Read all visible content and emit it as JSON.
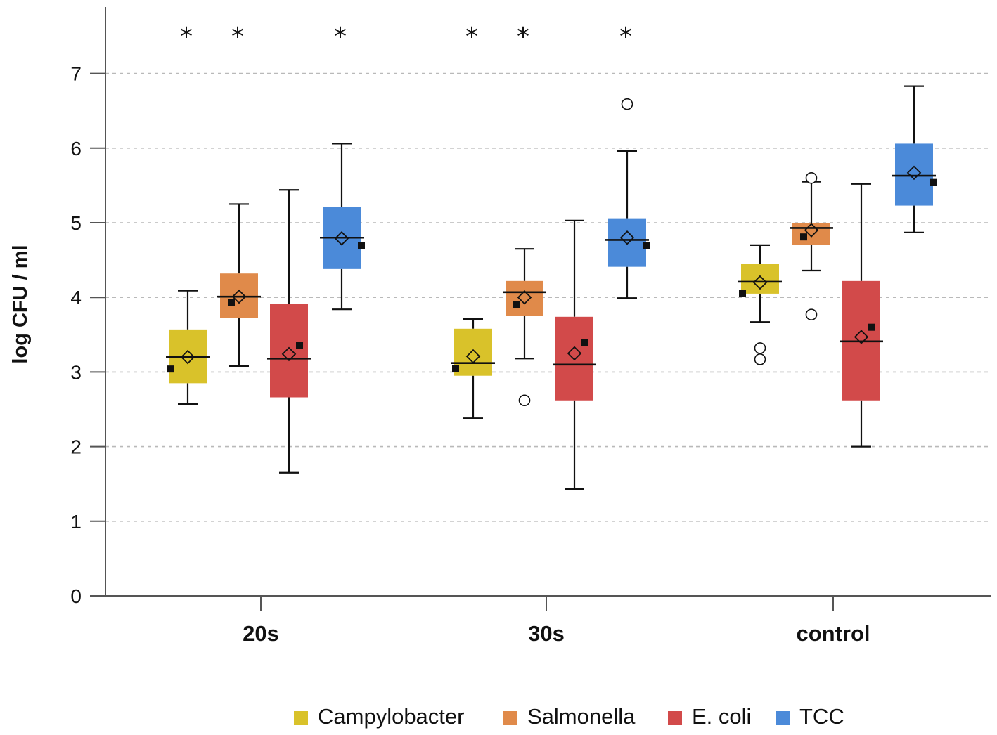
{
  "chart_data": {
    "type": "box",
    "title": "",
    "xlabel": "",
    "ylabel": "log CFU / ml",
    "ylim": [
      0,
      7.7
    ],
    "yticks": [
      "0",
      "1",
      "2",
      "3",
      "4",
      "5",
      "6",
      "7"
    ],
    "grid": true,
    "legend_position": "bottom",
    "categories": [
      "20s",
      "30s",
      "control"
    ],
    "significance_marker": "*",
    "series": [
      {
        "name": "Campylobacter",
        "color": "#d9c22a",
        "groups": [
          {
            "category": "20s",
            "whisker_low": 2.57,
            "q1": 2.85,
            "median": 3.2,
            "q3": 3.57,
            "whisker_high": 4.09,
            "mean": 3.2,
            "point": 3.04,
            "outliers": [],
            "significant": true
          },
          {
            "category": "30s",
            "whisker_low": 2.38,
            "q1": 2.95,
            "median": 3.12,
            "q3": 3.58,
            "whisker_high": 3.71,
            "mean": 3.21,
            "point": 3.05,
            "outliers": [],
            "significant": true
          },
          {
            "category": "control",
            "whisker_low": 3.67,
            "q1": 4.05,
            "median": 4.21,
            "q3": 4.45,
            "whisker_high": 4.7,
            "mean": 4.2,
            "point": 4.05,
            "outliers": [
              3.32,
              3.17
            ],
            "significant": false
          }
        ]
      },
      {
        "name": "Salmonella",
        "color": "#e08a4a",
        "groups": [
          {
            "category": "20s",
            "whisker_low": 3.08,
            "q1": 3.72,
            "median": 4.01,
            "q3": 4.32,
            "whisker_high": 5.25,
            "mean": 4.01,
            "point": 3.93,
            "outliers": [],
            "significant": true
          },
          {
            "category": "30s",
            "whisker_low": 3.18,
            "q1": 3.75,
            "median": 4.07,
            "q3": 4.22,
            "whisker_high": 4.65,
            "mean": 4.0,
            "point": 3.9,
            "outliers": [
              2.62
            ],
            "significant": true
          },
          {
            "category": "control",
            "whisker_low": 4.36,
            "q1": 4.7,
            "median": 4.93,
            "q3": 5.0,
            "whisker_high": 5.55,
            "mean": 4.9,
            "point": 4.81,
            "outliers": [
              5.6,
              3.77
            ],
            "significant": false
          }
        ]
      },
      {
        "name": "E. coli",
        "color": "#d24a4a",
        "groups": [
          {
            "category": "20s",
            "whisker_low": 1.65,
            "q1": 2.66,
            "median": 3.18,
            "q3": 3.91,
            "whisker_high": 5.44,
            "mean": 3.24,
            "point": 3.36,
            "outliers": [],
            "significant": false
          },
          {
            "category": "30s",
            "whisker_low": 1.43,
            "q1": 2.62,
            "median": 3.1,
            "q3": 3.74,
            "whisker_high": 5.03,
            "mean": 3.25,
            "point": 3.39,
            "outliers": [],
            "significant": false
          },
          {
            "category": "control",
            "whisker_low": 2.0,
            "q1": 2.62,
            "median": 3.41,
            "q3": 4.22,
            "whisker_high": 5.52,
            "mean": 3.47,
            "point": 3.6,
            "outliers": [],
            "significant": false
          }
        ]
      },
      {
        "name": "TCC",
        "color": "#4b8ad9",
        "groups": [
          {
            "category": "20s",
            "whisker_low": 3.84,
            "q1": 4.38,
            "median": 4.8,
            "q3": 5.21,
            "whisker_high": 6.06,
            "mean": 4.79,
            "point": 4.69,
            "outliers": [],
            "significant": true
          },
          {
            "category": "30s",
            "whisker_low": 3.99,
            "q1": 4.41,
            "median": 4.77,
            "q3": 5.06,
            "whisker_high": 5.96,
            "mean": 4.8,
            "point": 4.69,
            "outliers": [
              6.59
            ],
            "significant": true
          },
          {
            "category": "control",
            "whisker_low": 4.87,
            "q1": 5.23,
            "median": 5.63,
            "q3": 6.06,
            "whisker_high": 6.83,
            "mean": 5.67,
            "point": 5.54,
            "outliers": [],
            "significant": false
          }
        ]
      }
    ]
  }
}
